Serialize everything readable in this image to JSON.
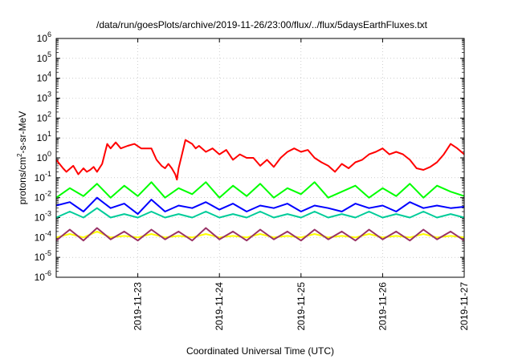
{
  "chart_data": {
    "type": "line",
    "title": "/data/run/goesPlots/archive/2019-11-26/23:00/flux/../flux/5daysEarthFluxes.txt",
    "xlabel": "Coordinated Universal Time (UTC)",
    "ylabel_main": "protons/cm",
    "ylabel_sup": "2",
    "ylabel_tail": "-s-sr-MeV",
    "x_range": [
      "2019-11-22T00:00",
      "2019-11-27T00:00"
    ],
    "x_ticks": [
      "2019-11-23",
      "2019-11-24",
      "2019-11-25",
      "2019-11-26",
      "2019-11-27"
    ],
    "y_scale": "log",
    "y_range": [
      1e-06,
      1000000.0
    ],
    "y_ticks": [
      {
        "base": "10",
        "exp": "-6"
      },
      {
        "base": "10",
        "exp": "-5"
      },
      {
        "base": "10",
        "exp": "-4"
      },
      {
        "base": "10",
        "exp": "-3"
      },
      {
        "base": "10",
        "exp": "-2"
      },
      {
        "base": "10",
        "exp": "-1"
      },
      {
        "base": "10",
        "exp": "0"
      },
      {
        "base": "10",
        "exp": "1"
      },
      {
        "base": "10",
        "exp": "2"
      },
      {
        "base": "10",
        "exp": "3"
      },
      {
        "base": "10",
        "exp": "4"
      },
      {
        "base": "10",
        "exp": "5"
      },
      {
        "base": "10",
        "exp": "6"
      }
    ],
    "grid": true,
    "series": [
      {
        "color": "#ff0000",
        "x": [
          "2019-11-22T00:00",
          "2019-11-22T02:00",
          "2019-11-22T03:00",
          "2019-11-22T05:00",
          "2019-11-22T06:30",
          "2019-11-22T08:00",
          "2019-11-22T09:00",
          "2019-11-22T10:00",
          "2019-11-22T11:00",
          "2019-11-22T12:00",
          "2019-11-22T13:30",
          "2019-11-22T15:00",
          "2019-11-22T16:00",
          "2019-11-22T17:30",
          "2019-11-22T19:00",
          "2019-11-22T21:00",
          "2019-11-22T23:00",
          "2019-11-23T01:00",
          "2019-11-23T03:00",
          "2019-11-23T04:00",
          "2019-11-23T05:30",
          "2019-11-23T07:00",
          "2019-11-23T08:00",
          "2019-11-23T09:00",
          "2019-11-23T10:00",
          "2019-11-23T11:00",
          "2019-11-23T11:30",
          "2019-11-23T12:00",
          "2019-11-23T13:00",
          "2019-11-23T14:00",
          "2019-11-23T16:00",
          "2019-11-23T17:00",
          "2019-11-23T18:00",
          "2019-11-23T20:00",
          "2019-11-23T22:00",
          "2019-11-24T00:00",
          "2019-11-24T02:00",
          "2019-11-24T04:00",
          "2019-11-24T06:00",
          "2019-11-24T08:00",
          "2019-11-24T10:00",
          "2019-11-24T12:00",
          "2019-11-24T14:00",
          "2019-11-24T16:00",
          "2019-11-24T18:00",
          "2019-11-24T20:00",
          "2019-11-24T22:00",
          "2019-11-25T00:00",
          "2019-11-25T02:00",
          "2019-11-25T04:00",
          "2019-11-25T06:00",
          "2019-11-25T08:00",
          "2019-11-25T10:00",
          "2019-11-25T12:00",
          "2019-11-25T14:00",
          "2019-11-25T16:00",
          "2019-11-25T18:00",
          "2019-11-25T20:00",
          "2019-11-25T22:00",
          "2019-11-26T00:00",
          "2019-11-26T02:00",
          "2019-11-26T04:00",
          "2019-11-26T06:00",
          "2019-11-26T08:00",
          "2019-11-26T10:00",
          "2019-11-26T12:00",
          "2019-11-26T14:00",
          "2019-11-26T16:00",
          "2019-11-26T18:00",
          "2019-11-26T20:00",
          "2019-11-26T22:00",
          "2019-11-27T00:00"
        ],
        "values": [
          0.8,
          0.3,
          0.2,
          0.4,
          0.15,
          0.3,
          0.2,
          0.25,
          0.35,
          0.2,
          0.5,
          5,
          3,
          6,
          3,
          4,
          5,
          3,
          3,
          3,
          0.8,
          0.4,
          0.3,
          0.5,
          0.3,
          0.15,
          0.08,
          0.3,
          1.5,
          8,
          5,
          3,
          4,
          2,
          3,
          1.5,
          2.5,
          0.8,
          1.5,
          1,
          1,
          0.4,
          0.8,
          0.35,
          1,
          2,
          3,
          2,
          2.5,
          1,
          0.6,
          0.4,
          0.2,
          0.5,
          0.3,
          0.6,
          0.8,
          1.5,
          2,
          3,
          1.5,
          2,
          1.5,
          0.8,
          0.3,
          0.25,
          0.35,
          0.6,
          1.5,
          5,
          3,
          1.5
        ]
      },
      {
        "color": "#00ff00",
        "x": [
          "2019-11-22T00:00",
          "2019-11-22T04:00",
          "2019-11-22T08:00",
          "2019-11-22T12:00",
          "2019-11-22T16:00",
          "2019-11-22T20:00",
          "2019-11-23T00:00",
          "2019-11-23T04:00",
          "2019-11-23T08:00",
          "2019-11-23T12:00",
          "2019-11-23T16:00",
          "2019-11-23T20:00",
          "2019-11-24T00:00",
          "2019-11-24T04:00",
          "2019-11-24T08:00",
          "2019-11-24T12:00",
          "2019-11-24T16:00",
          "2019-11-24T20:00",
          "2019-11-25T00:00",
          "2019-11-25T04:00",
          "2019-11-25T08:00",
          "2019-11-25T12:00",
          "2019-11-25T16:00",
          "2019-11-25T20:00",
          "2019-11-26T00:00",
          "2019-11-26T04:00",
          "2019-11-26T08:00",
          "2019-11-26T12:00",
          "2019-11-26T16:00",
          "2019-11-26T20:00",
          "2019-11-27T00:00"
        ],
        "values": [
          0.01,
          0.03,
          0.012,
          0.05,
          0.01,
          0.04,
          0.012,
          0.06,
          0.01,
          0.03,
          0.015,
          0.06,
          0.01,
          0.04,
          0.012,
          0.05,
          0.01,
          0.03,
          0.015,
          0.06,
          0.01,
          0.02,
          0.04,
          0.01,
          0.03,
          0.012,
          0.05,
          0.01,
          0.04,
          0.02,
          0.012
        ]
      },
      {
        "color": "#0000ff",
        "x": [
          "2019-11-22T00:00",
          "2019-11-22T04:00",
          "2019-11-22T08:00",
          "2019-11-22T12:00",
          "2019-11-22T16:00",
          "2019-11-22T20:00",
          "2019-11-23T00:00",
          "2019-11-23T04:00",
          "2019-11-23T08:00",
          "2019-11-23T12:00",
          "2019-11-23T16:00",
          "2019-11-23T20:00",
          "2019-11-24T00:00",
          "2019-11-24T04:00",
          "2019-11-24T08:00",
          "2019-11-24T12:00",
          "2019-11-24T16:00",
          "2019-11-24T20:00",
          "2019-11-25T00:00",
          "2019-11-25T04:00",
          "2019-11-25T08:00",
          "2019-11-25T12:00",
          "2019-11-25T16:00",
          "2019-11-25T20:00",
          "2019-11-26T00:00",
          "2019-11-26T04:00",
          "2019-11-26T08:00",
          "2019-11-26T12:00",
          "2019-11-26T16:00",
          "2019-11-26T20:00",
          "2019-11-27T00:00"
        ],
        "values": [
          0.004,
          0.006,
          0.002,
          0.01,
          0.003,
          0.005,
          0.0015,
          0.008,
          0.002,
          0.004,
          0.003,
          0.006,
          0.0025,
          0.005,
          0.002,
          0.004,
          0.003,
          0.005,
          0.002,
          0.004,
          0.003,
          0.002,
          0.005,
          0.003,
          0.004,
          0.002,
          0.006,
          0.003,
          0.004,
          0.003,
          0.0035
        ]
      },
      {
        "color": "#00cc99",
        "x": [
          "2019-11-22T00:00",
          "2019-11-22T04:00",
          "2019-11-22T08:00",
          "2019-11-22T12:00",
          "2019-11-22T16:00",
          "2019-11-22T20:00",
          "2019-11-23T00:00",
          "2019-11-23T04:00",
          "2019-11-23T08:00",
          "2019-11-23T12:00",
          "2019-11-23T16:00",
          "2019-11-23T20:00",
          "2019-11-24T00:00",
          "2019-11-24T04:00",
          "2019-11-24T08:00",
          "2019-11-24T12:00",
          "2019-11-24T16:00",
          "2019-11-24T20:00",
          "2019-11-25T00:00",
          "2019-11-25T04:00",
          "2019-11-25T08:00",
          "2019-11-25T12:00",
          "2019-11-25T16:00",
          "2019-11-25T20:00",
          "2019-11-26T00:00",
          "2019-11-26T04:00",
          "2019-11-26T08:00",
          "2019-11-26T12:00",
          "2019-11-26T16:00",
          "2019-11-26T20:00",
          "2019-11-27T00:00"
        ],
        "values": [
          0.001,
          0.002,
          0.001,
          0.003,
          0.001,
          0.0015,
          0.001,
          0.002,
          0.001,
          0.0015,
          0.001,
          0.002,
          0.001,
          0.0015,
          0.001,
          0.002,
          0.001,
          0.0015,
          0.001,
          0.002,
          0.001,
          0.0015,
          0.001,
          0.002,
          0.001,
          0.0015,
          0.001,
          0.002,
          0.001,
          0.0015,
          0.001
        ]
      },
      {
        "color": "#ffff00",
        "x": [
          "2019-11-22T00:00",
          "2019-11-22T04:00",
          "2019-11-22T08:00",
          "2019-11-22T12:00",
          "2019-11-22T16:00",
          "2019-11-22T20:00",
          "2019-11-23T00:00",
          "2019-11-23T04:00",
          "2019-11-23T08:00",
          "2019-11-23T12:00",
          "2019-11-23T16:00",
          "2019-11-23T20:00",
          "2019-11-24T00:00",
          "2019-11-24T04:00",
          "2019-11-24T08:00",
          "2019-11-24T12:00",
          "2019-11-24T16:00",
          "2019-11-24T20:00",
          "2019-11-25T00:00",
          "2019-11-25T04:00",
          "2019-11-25T08:00",
          "2019-11-25T12:00",
          "2019-11-25T16:00",
          "2019-11-25T20:00",
          "2019-11-26T00:00",
          "2019-11-26T04:00",
          "2019-11-26T08:00",
          "2019-11-26T12:00",
          "2019-11-26T16:00",
          "2019-11-26T20:00",
          "2019-11-27T00:00"
        ],
        "values": [
          0.0001,
          0.00015,
          0.0001,
          0.0002,
          0.0001,
          0.00012,
          0.0001,
          0.00015,
          0.0001,
          0.00012,
          0.0001,
          0.00015,
          0.0001,
          0.00012,
          0.0001,
          0.00015,
          0.0001,
          0.00012,
          0.0001,
          0.00015,
          0.0001,
          0.00012,
          0.0001,
          0.00015,
          0.0001,
          0.00012,
          0.0001,
          0.00015,
          0.0001,
          0.00012,
          0.0001
        ]
      },
      {
        "color": "#993366",
        "x": [
          "2019-11-22T00:00",
          "2019-11-22T04:00",
          "2019-11-22T08:00",
          "2019-11-22T12:00",
          "2019-11-22T16:00",
          "2019-11-22T20:00",
          "2019-11-23T00:00",
          "2019-11-23T04:00",
          "2019-11-23T08:00",
          "2019-11-23T12:00",
          "2019-11-23T16:00",
          "2019-11-23T20:00",
          "2019-11-24T00:00",
          "2019-11-24T04:00",
          "2019-11-24T08:00",
          "2019-11-24T12:00",
          "2019-11-24T16:00",
          "2019-11-24T20:00",
          "2019-11-25T00:00",
          "2019-11-25T04:00",
          "2019-11-25T08:00",
          "2019-11-25T12:00",
          "2019-11-25T16:00",
          "2019-11-25T20:00",
          "2019-11-26T00:00",
          "2019-11-26T04:00",
          "2019-11-26T08:00",
          "2019-11-26T12:00",
          "2019-11-26T16:00",
          "2019-11-26T20:00",
          "2019-11-27T00:00"
        ],
        "values": [
          7e-05,
          0.00025,
          7e-05,
          0.0003,
          8e-05,
          0.0002,
          7e-05,
          0.00025,
          8e-05,
          0.0002,
          7e-05,
          0.0003,
          8e-05,
          0.0002,
          7e-05,
          0.00025,
          8e-05,
          0.0002,
          7e-05,
          0.00025,
          8e-05,
          0.0002,
          7e-05,
          0.00025,
          8e-05,
          0.0002,
          7e-05,
          0.00025,
          8e-05,
          0.0002,
          7e-05
        ]
      }
    ]
  }
}
